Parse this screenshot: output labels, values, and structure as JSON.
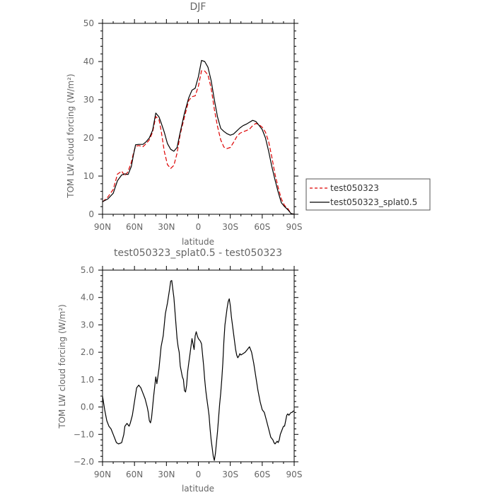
{
  "chart_data": [
    {
      "type": "line",
      "title": "DJF",
      "xlabel": "latitude",
      "ylabel": "TOM LW cloud forcing (W/m²)",
      "xlim": [
        90,
        -90
      ],
      "ylim": [
        0,
        50
      ],
      "xticks": [
        90,
        60,
        30,
        0,
        -30,
        -60,
        -90
      ],
      "xtick_labels": [
        "90N",
        "60N",
        "30N",
        "0",
        "30S",
        "60S",
        "90S"
      ],
      "yticks": [
        0,
        10,
        20,
        30,
        40,
        50
      ],
      "ytick_labels": [
        "0",
        "10",
        "20",
        "30",
        "40",
        "50"
      ],
      "legend": "right",
      "series": [
        {
          "name": "test050323",
          "color": "#dd0000",
          "style": "dashed",
          "x": [
            90,
            85,
            80,
            76,
            72,
            69,
            66,
            63,
            61,
            59,
            56,
            52,
            49,
            46,
            43,
            40,
            37,
            35,
            32,
            29,
            26,
            23,
            20,
            17,
            13,
            9,
            6,
            3,
            0,
            -3,
            -6,
            -9,
            -12,
            -15,
            -18,
            -21,
            -24,
            -27,
            -30,
            -33,
            -36,
            -39,
            -42,
            -45,
            -48,
            -51,
            -54,
            -57,
            -60,
            -63,
            -66,
            -69,
            -72,
            -75,
            -78,
            -81,
            -84,
            -87,
            -90
          ],
          "values": [
            3.2,
            4.5,
            6.5,
            10.5,
            11.3,
            10.0,
            11.2,
            13.6,
            16.0,
            17.8,
            18.0,
            17.7,
            18.5,
            19.5,
            21.5,
            25.6,
            24.8,
            22.0,
            16.5,
            13.0,
            12.0,
            12.8,
            16.0,
            21.0,
            25.5,
            29.8,
            30.8,
            31.0,
            33.5,
            37.6,
            37.5,
            36.5,
            33.0,
            27.5,
            23.0,
            19.5,
            17.6,
            17.2,
            17.5,
            18.8,
            20.3,
            21.2,
            21.6,
            21.9,
            22.3,
            23.2,
            23.8,
            23.5,
            22.8,
            21.5,
            19.0,
            15.0,
            10.5,
            7.0,
            4.0,
            2.3,
            1.5,
            0.2,
            0.0
          ]
        },
        {
          "name": "test050323_splat0.5",
          "color": "#000000",
          "style": "solid",
          "x": [
            90,
            85,
            80,
            76,
            72,
            69,
            66,
            63,
            61,
            59,
            56,
            52,
            49,
            46,
            43,
            40,
            37,
            35,
            32,
            29,
            26,
            23,
            20,
            17,
            13,
            9,
            6,
            3,
            0,
            -3,
            -6,
            -9,
            -12,
            -15,
            -18,
            -21,
            -24,
            -27,
            -30,
            -33,
            -36,
            -39,
            -42,
            -45,
            -48,
            -51,
            -54,
            -57,
            -60,
            -63,
            -66,
            -69,
            -72,
            -75,
            -78,
            -81,
            -84,
            -87,
            -90
          ],
          "values": [
            3.3,
            4.0,
            5.5,
            8.8,
            10.3,
            10.6,
            10.4,
            12.5,
            15.5,
            18.2,
            18.3,
            18.3,
            19.0,
            20.0,
            22.0,
            26.5,
            25.5,
            24.0,
            21.5,
            18.5,
            17.0,
            16.5,
            17.5,
            21.5,
            26.5,
            30.5,
            32.5,
            33.0,
            36.0,
            40.3,
            40.0,
            38.5,
            35.0,
            30.0,
            25.5,
            22.5,
            21.7,
            21.1,
            20.7,
            21.0,
            21.8,
            22.6,
            23.2,
            23.6,
            24.1,
            24.6,
            24.3,
            23.3,
            22.2,
            20.0,
            16.5,
            12.5,
            9.0,
            5.8,
            3.0,
            2.0,
            1.2,
            0.2,
            0.0
          ]
        }
      ]
    },
    {
      "type": "line",
      "title": "test050323_splat0.5 - test050323",
      "xlabel": "latitude",
      "ylabel": "TOM LW cloud forcing (W/m²)",
      "xlim": [
        90,
        -90
      ],
      "ylim": [
        -2.0,
        5.0
      ],
      "xticks": [
        90,
        60,
        30,
        0,
        -30,
        -60,
        -90
      ],
      "xtick_labels": [
        "90N",
        "60N",
        "30N",
        "0",
        "30S",
        "60S",
        "90S"
      ],
      "yticks": [
        -2.0,
        -1.0,
        0.0,
        1.0,
        2.0,
        3.0,
        4.0,
        5.0
      ],
      "ytick_labels": [
        "−2.0",
        "−1.0",
        "0.0",
        "1.0",
        "2.0",
        "3.0",
        "4.0",
        "5.0"
      ],
      "series": [
        {
          "color": "#000000",
          "style": "solid",
          "x": [
            90,
            88,
            86,
            84,
            82,
            80,
            78,
            77,
            75,
            72,
            70,
            69,
            67,
            65,
            64,
            62,
            60,
            58,
            56,
            54,
            52,
            50,
            48,
            47,
            46,
            45,
            44,
            43,
            42,
            41,
            40,
            39,
            37,
            35,
            33,
            31,
            29,
            27,
            26,
            25,
            24,
            23,
            22,
            21,
            20,
            19,
            18,
            17,
            16,
            15,
            14,
            13,
            12,
            11,
            10,
            9,
            8,
            7,
            6,
            5,
            4,
            3,
            2,
            1,
            0,
            -1,
            -2,
            -3,
            -4,
            -5,
            -6,
            -7,
            -8,
            -9,
            -10,
            -11,
            -12,
            -13,
            -14,
            -15,
            -16,
            -17,
            -18,
            -19,
            -20,
            -21,
            -22,
            -23,
            -24,
            -25,
            -26,
            -27,
            -28,
            -29,
            -30,
            -31,
            -32,
            -33,
            -34,
            -35,
            -36,
            -37,
            -38,
            -39,
            -40,
            -42,
            -44,
            -46,
            -48,
            -50,
            -52,
            -54,
            -56,
            -58,
            -60,
            -62,
            -64,
            -66,
            -68,
            -70,
            -71,
            -72,
            -73,
            -74,
            -75,
            -76,
            -77,
            -78,
            -79,
            -80,
            -81,
            -82,
            -83,
            -84,
            -85,
            -86,
            -87,
            -88,
            -89,
            -90
          ],
          "values": [
            0.4,
            -0.1,
            -0.5,
            -0.7,
            -0.8,
            -1.0,
            -1.2,
            -1.3,
            -1.35,
            -1.3,
            -1.0,
            -0.7,
            -0.6,
            -0.7,
            -0.6,
            -0.3,
            0.2,
            0.7,
            0.8,
            0.7,
            0.5,
            0.3,
            0.0,
            -0.2,
            -0.5,
            -0.58,
            -0.4,
            0.0,
            0.4,
            0.75,
            1.1,
            0.85,
            1.4,
            2.2,
            2.6,
            3.4,
            3.8,
            4.3,
            4.6,
            4.62,
            4.3,
            4.0,
            3.5,
            3.0,
            2.5,
            2.2,
            2.0,
            1.5,
            1.3,
            1.1,
            1.0,
            0.6,
            0.55,
            0.8,
            1.3,
            1.6,
            1.9,
            2.2,
            2.5,
            2.3,
            2.1,
            2.6,
            2.75,
            2.6,
            2.5,
            2.45,
            2.4,
            2.3,
            1.9,
            1.5,
            1.0,
            0.6,
            0.3,
            0.0,
            -0.3,
            -0.8,
            -1.2,
            -1.5,
            -1.8,
            -1.95,
            -1.7,
            -1.3,
            -0.9,
            -0.4,
            0.1,
            0.5,
            1.0,
            1.6,
            2.4,
            3.0,
            3.3,
            3.6,
            3.85,
            3.95,
            3.7,
            3.3,
            3.0,
            2.7,
            2.4,
            2.1,
            1.9,
            1.8,
            1.85,
            1.95,
            1.9,
            1.95,
            2.0,
            2.1,
            2.2,
            2.0,
            1.6,
            1.1,
            0.6,
            0.2,
            -0.1,
            -0.2,
            -0.5,
            -0.8,
            -1.1,
            -1.2,
            -1.3,
            -1.35,
            -1.3,
            -1.25,
            -1.3,
            -1.2,
            -1.0,
            -0.9,
            -0.8,
            -0.7,
            -0.7,
            -0.5,
            -0.3,
            -0.25,
            -0.3,
            -0.25,
            -0.2,
            -0.2,
            -0.15,
            -0.15
          ]
        }
      ]
    }
  ]
}
